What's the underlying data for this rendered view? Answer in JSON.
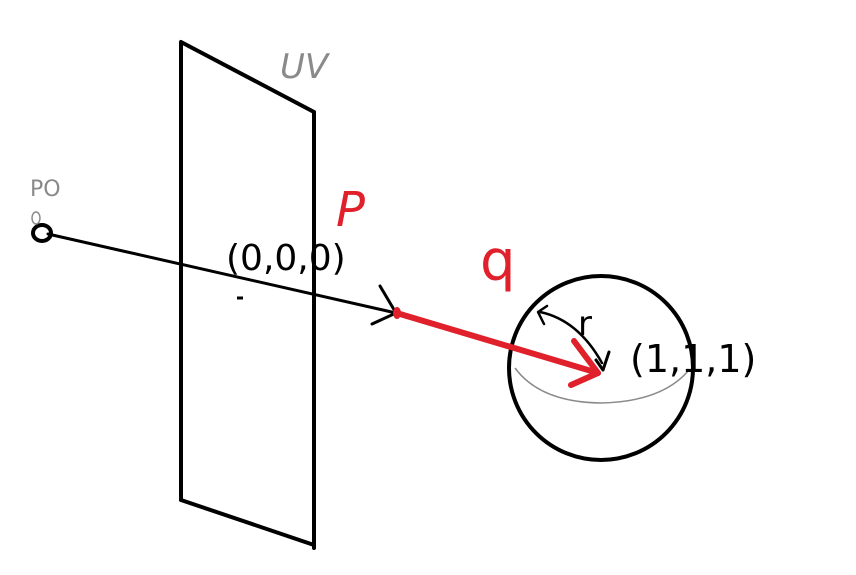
{
  "labels": {
    "plane": "UV",
    "origin": "PO",
    "point_p": "P",
    "vector_q": "q",
    "radius": "r",
    "origin_coord": "(0,0,0)",
    "center_coord": "(1,1,1)"
  },
  "colors": {
    "ink": "#000000",
    "accent": "#e0202a",
    "pencil": "#8a8a8a",
    "background": "#ffffff"
  }
}
